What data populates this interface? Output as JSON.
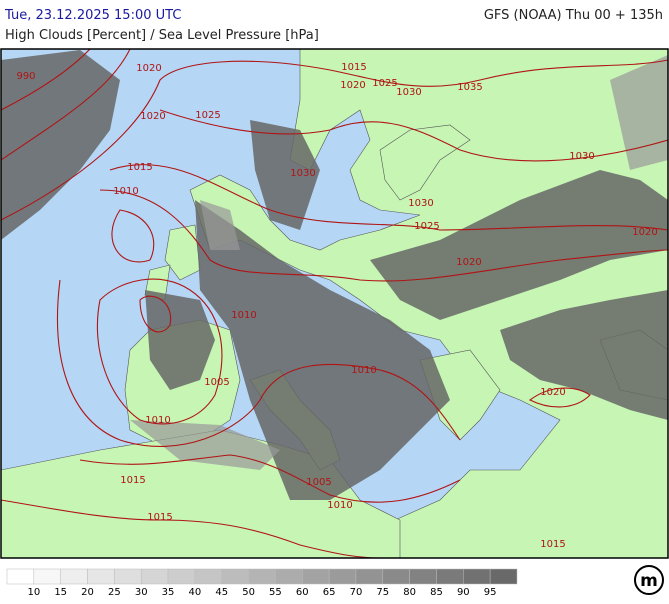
{
  "header": {
    "left": "Tue, 23.12.2025 15:00 UTC",
    "right": "GFS (NOAA) Thu 00 + 135h",
    "subtitle": "High Clouds [Percent] / Sea Level Pressure [hPa]"
  },
  "isobar_labels": [
    990,
    1020,
    1015,
    1020,
    1025,
    1030,
    1035,
    1020,
    1025,
    1030,
    1015,
    1030,
    1010,
    1030,
    1025,
    1020,
    1020,
    1010,
    1005,
    1010,
    1020,
    1010,
    1015,
    1005,
    1010,
    1015,
    1015
  ],
  "legend": {
    "ticks": [
      10,
      15,
      20,
      25,
      30,
      35,
      40,
      45,
      50,
      55,
      60,
      65,
      70,
      75,
      80,
      85,
      90,
      95
    ]
  },
  "logo": "m"
}
